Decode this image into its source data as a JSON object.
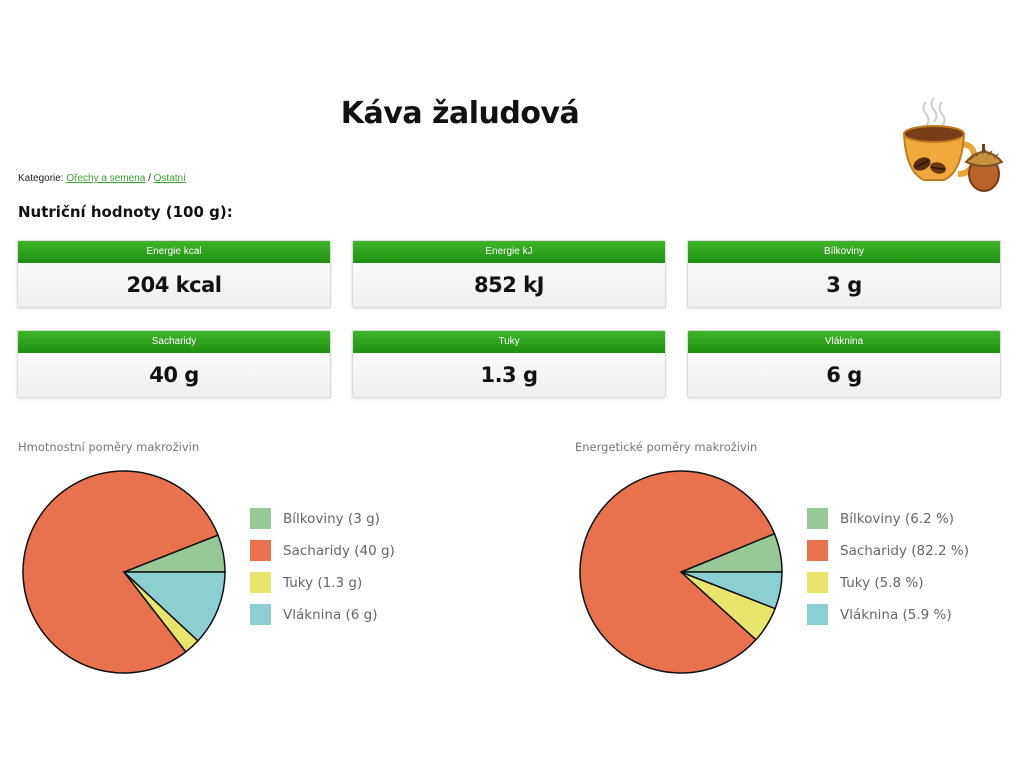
{
  "title": "Káva žaludová",
  "hero_image": {
    "icon": "coffee-cup-acorn-illustration"
  },
  "breadcrumb": {
    "prefix": "Kategorie:",
    "links": [
      "Ořechy a semena",
      "Ostatní"
    ],
    "separator": "/"
  },
  "section_heading": "Nutriční hodnoty (100 g):",
  "cards": [
    {
      "label": "Energie kcal",
      "value": "204 kcal"
    },
    {
      "label": "Energie kJ",
      "value": "852 kJ"
    },
    {
      "label": "Bílkoviny",
      "value": "3 g"
    },
    {
      "label": "Sacharidy",
      "value": "40 g"
    },
    {
      "label": "Tuky",
      "value": "1.3 g"
    },
    {
      "label": "Vláknina",
      "value": "6 g"
    }
  ],
  "colors": {
    "card_header": "#2e9e1f",
    "bilkoviny": "#96c996",
    "sacharidy": "#e8714e",
    "tuky": "#e7e56b",
    "vlaknina": "#8ccfd1",
    "link": "#3aa52f"
  },
  "chart_data": [
    {
      "type": "pie",
      "title": "Hmotnostní poměry makroživin",
      "categories": [
        "Bílkoviny",
        "Sacharidy",
        "Tuky",
        "Vláknina"
      ],
      "values": [
        3,
        40,
        1.3,
        6
      ],
      "legend": [
        "Bílkoviny (3 g)",
        "Sacharidy (40 g)",
        "Tuky (1.3 g)",
        "Vláknina (6 g)"
      ],
      "legend_position": "right"
    },
    {
      "type": "pie",
      "title": "Energetické poměry makroživin",
      "categories": [
        "Bílkoviny",
        "Sacharidy",
        "Tuky",
        "Vláknina"
      ],
      "values": [
        6.2,
        82.2,
        5.8,
        5.9
      ],
      "legend": [
        "Bílkoviny (6.2 %)",
        "Sacharidy (82.2 %)",
        "Tuky (5.8 %)",
        "Vláknina (5.9 %)"
      ],
      "legend_position": "right"
    }
  ]
}
